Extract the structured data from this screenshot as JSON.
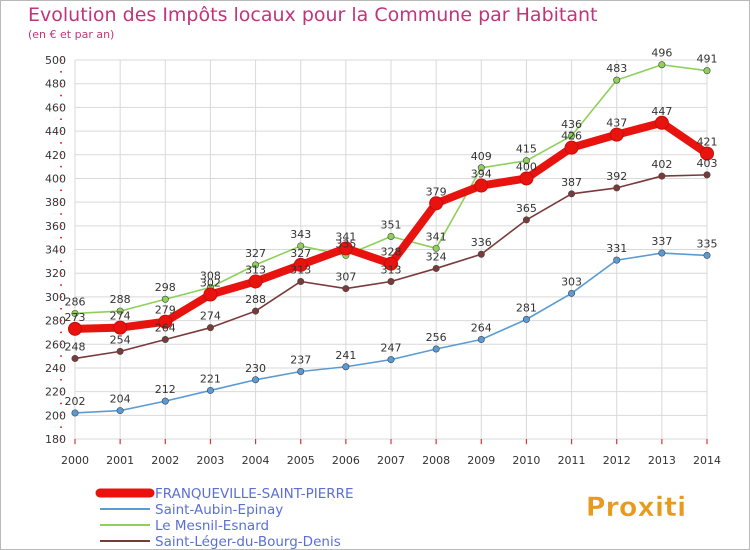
{
  "header": {
    "title": "Evolution des Impôts locaux pour la Commune par Habitant",
    "subtitle": "(en € et par an)"
  },
  "logo": {
    "text": "Proxiti"
  },
  "colors": {
    "title": "#c0357a",
    "grid": "#d9d9d9",
    "axis_text": "#333333"
  },
  "chart_data": {
    "type": "line",
    "title": "Evolution des Impôts locaux pour la Commune par Habitant",
    "subtitle": "(en € et par an)",
    "xlabel": "",
    "ylabel": "",
    "x": [
      "2000",
      "2001",
      "2002",
      "2003",
      "2004",
      "2005",
      "2006",
      "2007",
      "2008",
      "2009",
      "2010",
      "2011",
      "2012",
      "2013",
      "2014"
    ],
    "ylim": [
      180,
      500
    ],
    "yticks": [
      180,
      200,
      220,
      240,
      260,
      280,
      300,
      320,
      340,
      360,
      380,
      400,
      420,
      440,
      460,
      480,
      500
    ],
    "grid": true,
    "legend_position": "bottom-left",
    "series": [
      {
        "name": "FRANQUEVILLE-SAINT-PIERRE",
        "color": "#e8130f",
        "values": [
          273,
          274,
          279,
          302,
          313,
          327,
          341,
          328,
          379,
          394,
          400,
          426,
          437,
          447,
          421
        ],
        "labels": [
          "273",
          "274",
          "279",
          "302",
          "313",
          "327",
          "341",
          "328",
          "379",
          "394",
          "400",
          "426",
          "437",
          "447",
          "421"
        ]
      },
      {
        "name": "Saint-Aubin-Epinay",
        "color": "#5b9bd5",
        "values": [
          202,
          204,
          212,
          221,
          230,
          237,
          241,
          247,
          256,
          264,
          281,
          303,
          331,
          337,
          335
        ],
        "labels": [
          "202",
          "204",
          "212",
          "221",
          "230",
          "237",
          "241",
          "247",
          "256",
          "264",
          "281",
          "303",
          "331",
          "337",
          "335"
        ]
      },
      {
        "name": "Le Mesnil-Esnard",
        "color": "#8ed05a",
        "values": [
          286,
          288,
          298,
          308,
          327,
          343,
          335,
          351,
          341,
          409,
          415,
          436,
          483,
          496,
          491
        ],
        "labels": [
          "286",
          "288",
          "298",
          "308",
          "327",
          "343",
          "335",
          "351",
          "341",
          "409",
          "415",
          "436",
          "483",
          "496",
          "491"
        ]
      },
      {
        "name": "Saint-Léger-du-Bourg-Denis",
        "color": "#7b3a3a",
        "values": [
          248,
          254,
          264,
          274,
          288,
          313,
          307,
          313,
          324,
          336,
          365,
          387,
          392,
          402,
          403
        ],
        "labels": [
          "248",
          "254",
          "264",
          "274",
          "288",
          "313",
          "307",
          "313",
          "324",
          "336",
          "365",
          "387",
          "392",
          "402",
          "403"
        ]
      }
    ]
  }
}
